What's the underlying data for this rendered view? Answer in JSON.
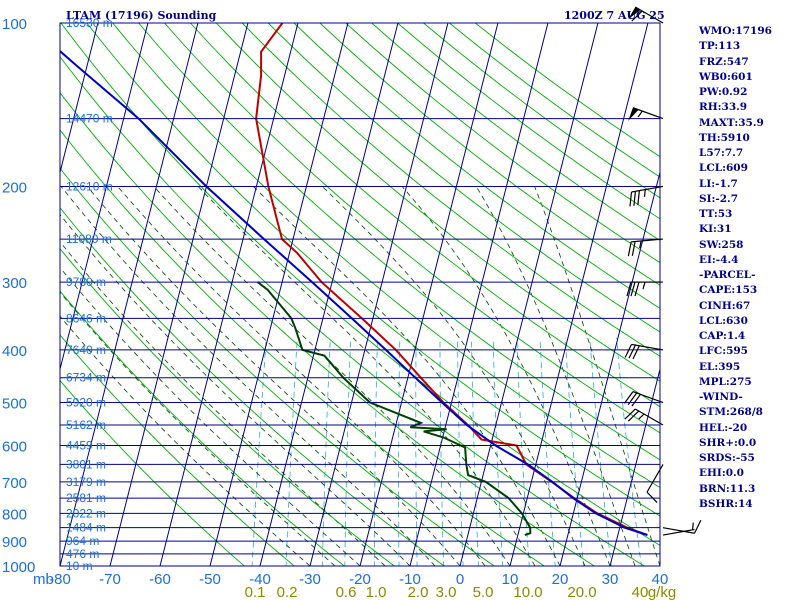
{
  "title": "LTAM (17196) Sounding",
  "time": "1200Z  7 AUG 25",
  "colors": {
    "temperature": "#c00000",
    "dewpoint": "#004000",
    "parcel": "#0000c0",
    "isobars_isotherms": "#00008b",
    "dry_adiabats": "#00b000",
    "moist_adiabats": "#004000",
    "mixing_ratio": "#2aa9d8",
    "axis_labels": "#1a6fd8",
    "background": "#ffffff"
  },
  "indices": [
    "WMO:17196",
    "TP:113",
    "FRZ:547",
    "WB0:601",
    "PW:0.92",
    "RH:33.9",
    "MAXT:35.9",
    "TH:5910",
    "L57:7.7",
    "LCL:609",
    "LI:-1.7",
    "SI:-2.7",
    "TT:53",
    "KI:31",
    "SW:258",
    "EI:-4.4",
    "-PARCEL-",
    "CAPE:153",
    "CINH:67",
    "LCL:630",
    "CAP:1.4",
    "LFC:595",
    "EL:395",
    "MPL:275",
    "-WIND-",
    "STM:268/8",
    "HEL:-20",
    "SHR+:0.0",
    "SRDS:-55",
    "EHI:0.0",
    "BRN:11.3",
    "BSHR:14"
  ],
  "chart_data": {
    "type": "skew-t log-p sounding",
    "y_axis": {
      "unit": "mb",
      "pressure_ticks": [
        100,
        200,
        300,
        400,
        500,
        600,
        700,
        800,
        900,
        1000
      ],
      "height_labels": [
        {
          "p": 100,
          "text": "16530 m"
        },
        {
          "p": 150,
          "text": "14470 m"
        },
        {
          "p": 200,
          "text": "12610 m"
        },
        {
          "p": 250,
          "text": "11080 m"
        },
        {
          "p": 300,
          "text": "9780 m"
        },
        {
          "p": 350,
          "text": "8646 m"
        },
        {
          "p": 400,
          "text": "7640 m"
        },
        {
          "p": 450,
          "text": "6734 m"
        },
        {
          "p": 500,
          "text": "5920 m"
        },
        {
          "p": 550,
          "text": "5162 m"
        },
        {
          "p": 600,
          "text": "4459 m"
        },
        {
          "p": 650,
          "text": "3801 m"
        },
        {
          "p": 700,
          "text": "3179 m"
        },
        {
          "p": 750,
          "text": "2581 m"
        },
        {
          "p": 800,
          "text": "2022 m"
        },
        {
          "p": 850,
          "text": "1484 m"
        },
        {
          "p": 900,
          "text": "964 m"
        },
        {
          "p": 950,
          "text": "476 m"
        },
        {
          "p": 1000,
          "text": "10 m"
        }
      ]
    },
    "x_axis": {
      "unit_label": "mb",
      "temperature_ticks": [
        -80,
        -70,
        -60,
        -50,
        -40,
        -30,
        -20,
        -10,
        0,
        10,
        20,
        30,
        40
      ],
      "mixing_ratio_labels": [
        "0.1",
        "0.2",
        "0.6",
        "1.0",
        "2.0",
        "3.0",
        "5.0",
        "10.0",
        "20.0",
        "40",
        "g/kg"
      ],
      "mixing_ratio_values": [
        0.1,
        0.2,
        0.6,
        1.0,
        2.0,
        3.0,
        5.0,
        10.0,
        20.0,
        40.0
      ]
    },
    "series": [
      {
        "key": "temperature",
        "points": [
          [
            877,
            35.9
          ],
          [
            850,
            31.5
          ],
          [
            800,
            24.8
          ],
          [
            750,
            19.4
          ],
          [
            700,
            14.1
          ],
          [
            650,
            8.1
          ],
          [
            600,
            5.2
          ],
          [
            585,
            -2.1
          ],
          [
            550,
            -5.6
          ],
          [
            500,
            -11.6
          ],
          [
            450,
            -17.4
          ],
          [
            400,
            -23.8
          ],
          [
            350,
            -32.2
          ],
          [
            300,
            -42.1
          ],
          [
            265,
            -48.5
          ],
          [
            250,
            -52.2
          ],
          [
            200,
            -57.6
          ],
          [
            150,
            -63.5
          ],
          [
            125,
            -64.7
          ],
          [
            113,
            -65.9
          ],
          [
            100,
            -63.1
          ]
        ]
      },
      {
        "key": "parcel",
        "points": [
          [
            877,
            35.9
          ],
          [
            850,
            31.0
          ],
          [
            800,
            24.5
          ],
          [
            750,
            19.2
          ],
          [
            700,
            14.2
          ],
          [
            650,
            8.4
          ],
          [
            600,
            1.0
          ],
          [
            550,
            -5.8
          ],
          [
            500,
            -11.9
          ],
          [
            450,
            -18.5
          ],
          [
            400,
            -25.8
          ],
          [
            350,
            -34.2
          ],
          [
            300,
            -44.0
          ],
          [
            250,
            -55.8
          ],
          [
            200,
            -70.0
          ],
          [
            150,
            -87.0
          ],
          [
            120,
            -102.0
          ],
          [
            100,
            -114.0
          ]
        ]
      },
      {
        "key": "dewpoint",
        "points": [
          [
            877,
            11.4
          ],
          [
            870,
            12.4
          ],
          [
            850,
            12.1
          ],
          [
            800,
            9.7
          ],
          [
            750,
            6.3
          ],
          [
            700,
            0.9
          ],
          [
            680,
            -3.0
          ],
          [
            650,
            -3.9
          ],
          [
            605,
            -5.0
          ],
          [
            580,
            -9.8
          ],
          [
            565,
            -14.1
          ],
          [
            560,
            -9.6
          ],
          [
            555,
            -17.0
          ],
          [
            545,
            -15.1
          ],
          [
            500,
            -26.3
          ],
          [
            450,
            -32.9
          ],
          [
            410,
            -37.8
          ],
          [
            400,
            -42.5
          ],
          [
            365,
            -45.0
          ],
          [
            350,
            -46.3
          ],
          [
            310,
            -52.5
          ],
          [
            300,
            -54.9
          ]
        ]
      }
    ],
    "winds": [
      {
        "p": 100,
        "dir": 300,
        "spd": 60
      },
      {
        "p": 150,
        "dir": 290,
        "spd": 55
      },
      {
        "p": 200,
        "dir": 260,
        "spd": 35
      },
      {
        "p": 250,
        "dir": 265,
        "spd": 25
      },
      {
        "p": 300,
        "dir": 270,
        "spd": 35
      },
      {
        "p": 400,
        "dir": 280,
        "spd": 30
      },
      {
        "p": 500,
        "dir": 290,
        "spd": 30
      },
      {
        "p": 550,
        "dir": 300,
        "spd": 25
      },
      {
        "p": 650,
        "dir": 210,
        "spd": 10
      },
      {
        "p": 850,
        "dir": 100,
        "spd": 10
      },
      {
        "p": 877,
        "dir": 80,
        "spd": 5
      }
    ],
    "grid": true,
    "legend": "none"
  }
}
